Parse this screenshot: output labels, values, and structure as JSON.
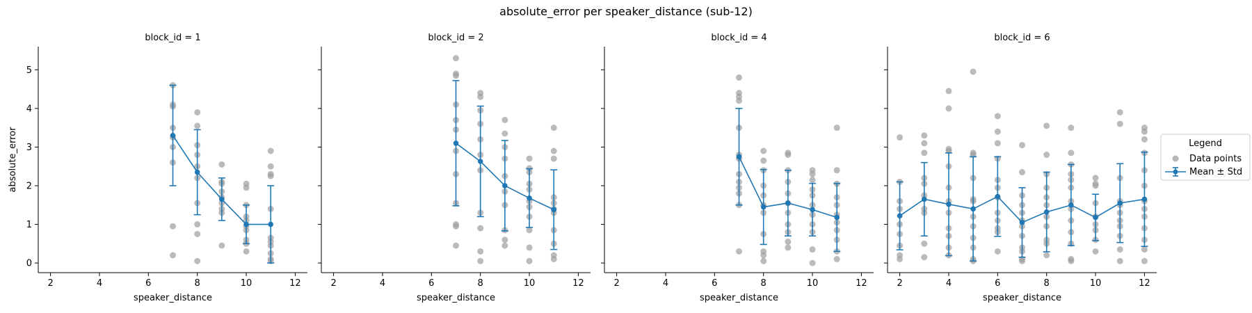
{
  "figure": {
    "title": "absolute_error per speaker_distance (sub-12)"
  },
  "legend": {
    "title": "Legend",
    "items": [
      "Data points",
      "Mean ± Std"
    ]
  },
  "colors": {
    "points": "#9e9e9e",
    "mean_line": "#1f77b4",
    "axis": "#000000"
  },
  "chart_data": [
    {
      "type": "scatter",
      "title": "block_id = 1",
      "xlabel": "speaker_distance",
      "ylabel": "absolute_error",
      "xlim": [
        1.5,
        12.5
      ],
      "ylim": [
        -0.25,
        5.6
      ],
      "xticks": [
        2,
        4,
        6,
        8,
        10,
        12
      ],
      "yticks": [
        0,
        1,
        2,
        3,
        4,
        5
      ],
      "grid": false,
      "points": [
        [
          7,
          4.6
        ],
        [
          7,
          4.1
        ],
        [
          7,
          4.05
        ],
        [
          7,
          3.5
        ],
        [
          7,
          3.25
        ],
        [
          7,
          3.0
        ],
        [
          7,
          2.6
        ],
        [
          7,
          0.95
        ],
        [
          7,
          0.2
        ],
        [
          8,
          3.9
        ],
        [
          8,
          3.55
        ],
        [
          8,
          3.05
        ],
        [
          8,
          2.8
        ],
        [
          8,
          2.5
        ],
        [
          8,
          2.2
        ],
        [
          8,
          1.55
        ],
        [
          8,
          1.0
        ],
        [
          8,
          0.75
        ],
        [
          8,
          0.05
        ],
        [
          9,
          2.55
        ],
        [
          9,
          2.1
        ],
        [
          9,
          2.05
        ],
        [
          9,
          1.85
        ],
        [
          9,
          1.7
        ],
        [
          9,
          1.55
        ],
        [
          9,
          1.4
        ],
        [
          9,
          1.3
        ],
        [
          9,
          0.45
        ],
        [
          10,
          2.05
        ],
        [
          10,
          1.95
        ],
        [
          10,
          1.5
        ],
        [
          10,
          1.2
        ],
        [
          10,
          1.1
        ],
        [
          10,
          0.95
        ],
        [
          10,
          0.85
        ],
        [
          10,
          0.6
        ],
        [
          10,
          0.5
        ],
        [
          10,
          0.3
        ],
        [
          11,
          2.9
        ],
        [
          11,
          2.5
        ],
        [
          11,
          2.3
        ],
        [
          11,
          2.25
        ],
        [
          11,
          1.4
        ],
        [
          11,
          0.65
        ],
        [
          11,
          0.55
        ],
        [
          11,
          0.45
        ],
        [
          11,
          0.25
        ],
        [
          11,
          0.1
        ],
        [
          11,
          0.05
        ]
      ],
      "means": [
        {
          "x": 7,
          "mean": 3.3,
          "std": 1.3
        },
        {
          "x": 8,
          "mean": 2.35,
          "std": 1.1
        },
        {
          "x": 9,
          "mean": 1.65,
          "std": 0.55
        },
        {
          "x": 10,
          "mean": 1.0,
          "std": 0.5
        },
        {
          "x": 11,
          "mean": 1.0,
          "std": 1.0
        }
      ]
    },
    {
      "type": "scatter",
      "title": "block_id = 2",
      "xlabel": "speaker_distance",
      "ylabel": "",
      "xlim": [
        1.5,
        12.5
      ],
      "ylim": [
        -0.25,
        5.6
      ],
      "xticks": [
        2,
        4,
        6,
        8,
        10,
        12
      ],
      "yticks": [
        0,
        1,
        2,
        3,
        4,
        5
      ],
      "grid": false,
      "points": [
        [
          7,
          5.3
        ],
        [
          7,
          4.9
        ],
        [
          7,
          4.85
        ],
        [
          7,
          4.1
        ],
        [
          7,
          3.7
        ],
        [
          7,
          3.45
        ],
        [
          7,
          2.9
        ],
        [
          7,
          2.3
        ],
        [
          7,
          1.55
        ],
        [
          7,
          1.0
        ],
        [
          7,
          0.95
        ],
        [
          7,
          0.45
        ],
        [
          8,
          4.4
        ],
        [
          8,
          4.3
        ],
        [
          8,
          3.95
        ],
        [
          8,
          3.6
        ],
        [
          8,
          3.2
        ],
        [
          8,
          2.8
        ],
        [
          8,
          2.4
        ],
        [
          8,
          1.3
        ],
        [
          8,
          0.9
        ],
        [
          8,
          0.3
        ],
        [
          8,
          0.05
        ],
        [
          9,
          3.7
        ],
        [
          9,
          3.35
        ],
        [
          9,
          3.0
        ],
        [
          9,
          2.7
        ],
        [
          9,
          2.25
        ],
        [
          9,
          1.85
        ],
        [
          9,
          1.5
        ],
        [
          9,
          0.85
        ],
        [
          9,
          0.6
        ],
        [
          9,
          0.45
        ],
        [
          10,
          2.7
        ],
        [
          10,
          2.45
        ],
        [
          10,
          2.35
        ],
        [
          10,
          2.05
        ],
        [
          10,
          1.9
        ],
        [
          10,
          1.6
        ],
        [
          10,
          1.45
        ],
        [
          10,
          1.2
        ],
        [
          10,
          0.85
        ],
        [
          10,
          0.4
        ],
        [
          10,
          0.05
        ],
        [
          11,
          3.5
        ],
        [
          11,
          2.9
        ],
        [
          11,
          2.7
        ],
        [
          11,
          1.7
        ],
        [
          11,
          1.55
        ],
        [
          11,
          1.4
        ],
        [
          11,
          1.3
        ],
        [
          11,
          0.85
        ],
        [
          11,
          0.5
        ],
        [
          11,
          0.2
        ],
        [
          11,
          0.1
        ]
      ],
      "means": [
        {
          "x": 7,
          "mean": 3.1,
          "std": 1.62
        },
        {
          "x": 8,
          "mean": 2.63,
          "std": 1.43
        },
        {
          "x": 9,
          "mean": 2.0,
          "std": 1.17
        },
        {
          "x": 10,
          "mean": 1.68,
          "std": 0.76
        },
        {
          "x": 11,
          "mean": 1.38,
          "std": 1.03
        }
      ]
    },
    {
      "type": "scatter",
      "title": "block_id = 4",
      "xlabel": "speaker_distance",
      "ylabel": "",
      "xlim": [
        1.5,
        12.5
      ],
      "ylim": [
        -0.25,
        5.6
      ],
      "xticks": [
        2,
        4,
        6,
        8,
        10,
        12
      ],
      "yticks": [
        0,
        1,
        2,
        3,
        4,
        5
      ],
      "grid": false,
      "points": [
        [
          7,
          4.8
        ],
        [
          7,
          4.4
        ],
        [
          7,
          4.3
        ],
        [
          7,
          4.2
        ],
        [
          7,
          3.5
        ],
        [
          7,
          2.8
        ],
        [
          7,
          2.7
        ],
        [
          7,
          2.3
        ],
        [
          7,
          2.1
        ],
        [
          7,
          1.95
        ],
        [
          7,
          1.8
        ],
        [
          7,
          1.5
        ],
        [
          7,
          0.3
        ],
        [
          8,
          2.9
        ],
        [
          8,
          2.65
        ],
        [
          8,
          2.4
        ],
        [
          8,
          2.0
        ],
        [
          8,
          1.75
        ],
        [
          8,
          1.5
        ],
        [
          8,
          1.3
        ],
        [
          8,
          0.75
        ],
        [
          8,
          0.3
        ],
        [
          8,
          0.2
        ],
        [
          8,
          0.05
        ],
        [
          9,
          2.85
        ],
        [
          9,
          2.8
        ],
        [
          9,
          2.4
        ],
        [
          9,
          2.1
        ],
        [
          9,
          1.8
        ],
        [
          9,
          1.55
        ],
        [
          9,
          1.3
        ],
        [
          9,
          1.0
        ],
        [
          9,
          0.8
        ],
        [
          9,
          0.55
        ],
        [
          9,
          0.4
        ],
        [
          10,
          2.4
        ],
        [
          10,
          2.3
        ],
        [
          10,
          2.15
        ],
        [
          10,
          1.9
        ],
        [
          10,
          1.75
        ],
        [
          10,
          1.5
        ],
        [
          10,
          1.25
        ],
        [
          10,
          1.0
        ],
        [
          10,
          0.8
        ],
        [
          10,
          0.35
        ],
        [
          10,
          0.0
        ],
        [
          11,
          3.5
        ],
        [
          11,
          2.4
        ],
        [
          11,
          2.05
        ],
        [
          11,
          1.7
        ],
        [
          11,
          1.5
        ],
        [
          11,
          1.25
        ],
        [
          11,
          1.05
        ],
        [
          11,
          0.85
        ],
        [
          11,
          0.6
        ],
        [
          11,
          0.3
        ],
        [
          11,
          0.1
        ]
      ],
      "means": [
        {
          "x": 7,
          "mean": 2.75,
          "std": 1.25
        },
        {
          "x": 8,
          "mean": 1.45,
          "std": 0.97
        },
        {
          "x": 9,
          "mean": 1.55,
          "std": 0.85
        },
        {
          "x": 10,
          "mean": 1.38,
          "std": 0.68
        },
        {
          "x": 11,
          "mean": 1.18,
          "std": 0.88
        }
      ]
    },
    {
      "type": "scatter",
      "title": "block_id = 6",
      "xlabel": "speaker_distance",
      "ylabel": "",
      "xlim": [
        1.5,
        12.5
      ],
      "ylim": [
        -0.25,
        5.6
      ],
      "xticks": [
        2,
        4,
        6,
        8,
        10,
        12
      ],
      "yticks": [
        0,
        1,
        2,
        3,
        4,
        5
      ],
      "grid": false,
      "points": [
        [
          2,
          3.25
        ],
        [
          2,
          2.1
        ],
        [
          2,
          1.6
        ],
        [
          2,
          1.4
        ],
        [
          2,
          1.0
        ],
        [
          2,
          0.75
        ],
        [
          2,
          0.45
        ],
        [
          2,
          0.2
        ],
        [
          2,
          0.1
        ],
        [
          3,
          3.3
        ],
        [
          3,
          3.1
        ],
        [
          3,
          2.85
        ],
        [
          3,
          2.2
        ],
        [
          3,
          2.05
        ],
        [
          3,
          1.75
        ],
        [
          3,
          1.4
        ],
        [
          3,
          1.3
        ],
        [
          3,
          0.5
        ],
        [
          3,
          0.15
        ],
        [
          4,
          4.45
        ],
        [
          4,
          4.0
        ],
        [
          4,
          2.95
        ],
        [
          4,
          2.9
        ],
        [
          4,
          2.5
        ],
        [
          4,
          1.95
        ],
        [
          4,
          1.6
        ],
        [
          4,
          1.3
        ],
        [
          4,
          0.9
        ],
        [
          4,
          0.7
        ],
        [
          4,
          0.4
        ],
        [
          4,
          0.2
        ],
        [
          5,
          4.95
        ],
        [
          5,
          2.85
        ],
        [
          5,
          2.8
        ],
        [
          5,
          2.2
        ],
        [
          5,
          1.65
        ],
        [
          5,
          1.6
        ],
        [
          5,
          1.2
        ],
        [
          5,
          0.95
        ],
        [
          5,
          0.65
        ],
        [
          5,
          0.4
        ],
        [
          5,
          0.1
        ],
        [
          5,
          0.05
        ],
        [
          6,
          3.8
        ],
        [
          6,
          3.4
        ],
        [
          6,
          3.1
        ],
        [
          6,
          2.7
        ],
        [
          6,
          2.15
        ],
        [
          6,
          1.95
        ],
        [
          6,
          1.7
        ],
        [
          6,
          1.3
        ],
        [
          6,
          1.1
        ],
        [
          6,
          0.9
        ],
        [
          6,
          0.8
        ],
        [
          6,
          0.3
        ],
        [
          7,
          3.05
        ],
        [
          7,
          2.35
        ],
        [
          7,
          1.75
        ],
        [
          7,
          1.5
        ],
        [
          7,
          1.3
        ],
        [
          7,
          1.1
        ],
        [
          7,
          0.95
        ],
        [
          7,
          0.7
        ],
        [
          7,
          0.4
        ],
        [
          7,
          0.3
        ],
        [
          7,
          0.1
        ],
        [
          7,
          0.05
        ],
        [
          8,
          3.55
        ],
        [
          8,
          2.8
        ],
        [
          8,
          2.3
        ],
        [
          8,
          1.95
        ],
        [
          8,
          1.7
        ],
        [
          8,
          1.5
        ],
        [
          8,
          1.2
        ],
        [
          8,
          0.95
        ],
        [
          8,
          0.6
        ],
        [
          8,
          0.5
        ],
        [
          8,
          0.2
        ],
        [
          9,
          3.5
        ],
        [
          9,
          2.85
        ],
        [
          9,
          2.55
        ],
        [
          9,
          2.3
        ],
        [
          9,
          2.15
        ],
        [
          9,
          1.95
        ],
        [
          9,
          1.6
        ],
        [
          9,
          1.4
        ],
        [
          9,
          1.1
        ],
        [
          9,
          0.8
        ],
        [
          9,
          0.5
        ],
        [
          9,
          0.1
        ],
        [
          9,
          0.05
        ],
        [
          10,
          2.2
        ],
        [
          10,
          2.05
        ],
        [
          10,
          2.0
        ],
        [
          10,
          1.55
        ],
        [
          10,
          1.2
        ],
        [
          10,
          1.0
        ],
        [
          10,
          0.85
        ],
        [
          10,
          0.6
        ],
        [
          10,
          0.3
        ],
        [
          11,
          3.9
        ],
        [
          11,
          3.6
        ],
        [
          11,
          2.2
        ],
        [
          11,
          1.6
        ],
        [
          11,
          1.5
        ],
        [
          11,
          1.3
        ],
        [
          11,
          1.1
        ],
        [
          11,
          0.95
        ],
        [
          11,
          0.7
        ],
        [
          11,
          0.35
        ],
        [
          11,
          0.05
        ],
        [
          12,
          3.5
        ],
        [
          12,
          3.4
        ],
        [
          12,
          3.2
        ],
        [
          12,
          2.85
        ],
        [
          12,
          2.4
        ],
        [
          12,
          2.0
        ],
        [
          12,
          1.6
        ],
        [
          12,
          1.4
        ],
        [
          12,
          1.2
        ],
        [
          12,
          0.9
        ],
        [
          12,
          0.6
        ],
        [
          12,
          0.35
        ],
        [
          12,
          0.05
        ]
      ],
      "means": [
        {
          "x": 2,
          "mean": 1.22,
          "std": 0.88
        },
        {
          "x": 3,
          "mean": 1.65,
          "std": 0.95
        },
        {
          "x": 4,
          "mean": 1.52,
          "std": 1.33
        },
        {
          "x": 5,
          "mean": 1.4,
          "std": 1.35
        },
        {
          "x": 6,
          "mean": 1.72,
          "std": 1.03
        },
        {
          "x": 7,
          "mean": 1.05,
          "std": 0.9
        },
        {
          "x": 8,
          "mean": 1.32,
          "std": 1.03
        },
        {
          "x": 9,
          "mean": 1.5,
          "std": 1.05
        },
        {
          "x": 10,
          "mean": 1.18,
          "std": 0.6
        },
        {
          "x": 11,
          "mean": 1.55,
          "std": 1.02
        },
        {
          "x": 12,
          "mean": 1.65,
          "std": 1.22
        }
      ]
    }
  ]
}
